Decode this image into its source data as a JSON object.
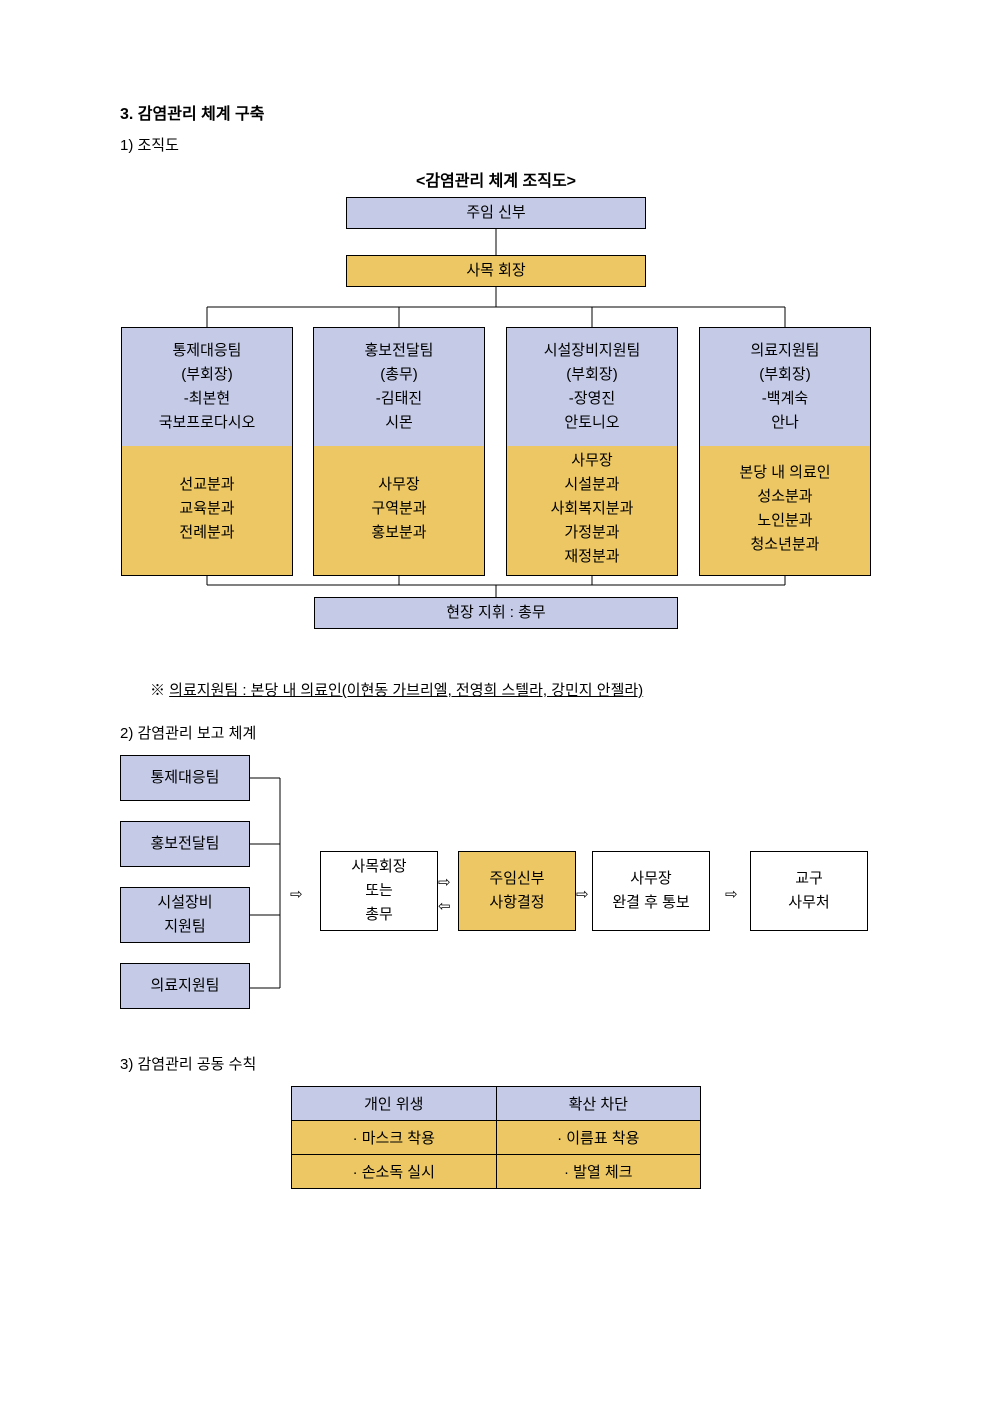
{
  "section": {
    "title": "3. 감염관리 체계 구축"
  },
  "sub1": {
    "label": "1) 조직도"
  },
  "org": {
    "title": "<감염관리 체계 조직도>",
    "colors": {
      "blue": "#c5cbe7",
      "gold": "#ecc763",
      "border": "#000000",
      "line": "#000000",
      "background": "#ffffff"
    },
    "top": "주임 신부",
    "second": "사목 회장",
    "teams": [
      {
        "head": [
          "통제대응팀",
          "(부회장)",
          "-최본현",
          "국보프로다시오"
        ],
        "body": [
          "선교분과",
          "교육분과",
          "전례분과"
        ]
      },
      {
        "head": [
          "홍보전달팀",
          "(총무)",
          "-김태진",
          "시몬"
        ],
        "body": [
          "사무장",
          "구역분과",
          "홍보분과"
        ]
      },
      {
        "head": [
          "시설장비지원팀",
          "(부회장)",
          "-장영진",
          "안토니오"
        ],
        "body": [
          "사무장",
          "시설분과",
          "사회복지분과",
          "가정분과",
          "재정분과"
        ]
      },
      {
        "head": [
          "의료지원팀",
          "(부회장)",
          "-백계숙",
          "안나"
        ],
        "body": [
          "본당 내 의료인",
          "성소분과",
          "노인분과",
          "청소년분과"
        ]
      }
    ],
    "fieldCmd": "현장 지휘 : 총무"
  },
  "note": {
    "prefix": "※ ",
    "text": "의료지원팀 : 본당 내 의료인(이현동 가브리엘, 전영희 스텔라, 강민지 안젤라)"
  },
  "sub2": {
    "label": "2) 감염관리 보고 체계"
  },
  "flow": {
    "teams": [
      "통제대응팀",
      "홍보전달팀",
      "시설장비\n지원팀",
      "의료지원팀"
    ],
    "boxes": [
      {
        "lines": [
          "사목회장",
          "또는",
          "총무"
        ],
        "bg": "white"
      },
      {
        "lines": [
          "주임신부",
          "사항결정"
        ],
        "bg": "gold"
      },
      {
        "lines": [
          "사무장",
          "완결 후 통보"
        ],
        "bg": "white"
      },
      {
        "lines": [
          "교구",
          "사무처"
        ],
        "bg": "white"
      }
    ],
    "arrow_glyph_right": "⇨",
    "arrow_glyph_left": "⇦"
  },
  "sub3": {
    "label": "3) 감염관리 공동 수칙"
  },
  "rules": {
    "headers": [
      "개인 위생",
      "확산 차단"
    ],
    "rows": [
      [
        "· 마스크 착용",
        "· 이름표 착용"
      ],
      [
        "· 손소독 실시",
        "· 발열 체크"
      ]
    ]
  }
}
